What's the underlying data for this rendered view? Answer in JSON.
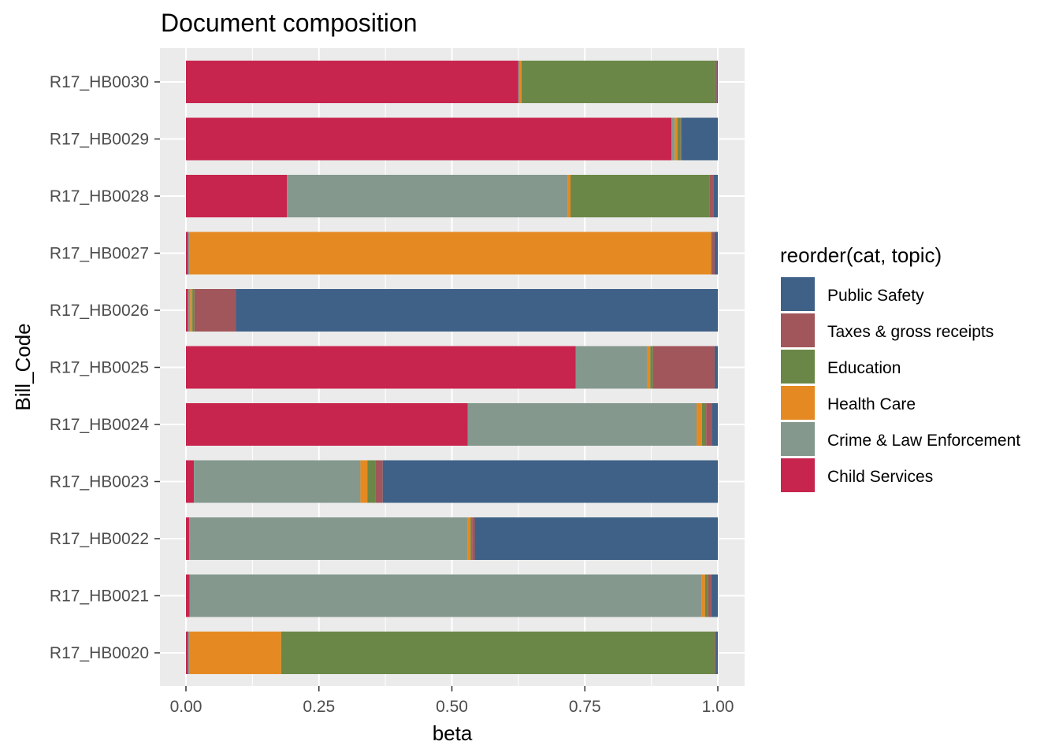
{
  "chart_data": {
    "type": "bar",
    "orientation": "horizontal",
    "stacked": true,
    "title": "Document composition",
    "xlabel": "beta",
    "ylabel": "Bill_Code",
    "xlim": [
      0,
      1
    ],
    "x_ticks": [
      "0.00",
      "0.25",
      "0.50",
      "0.75",
      "1.00"
    ],
    "grid": true,
    "legend_position": "right",
    "legend_title": "reorder(cat, topic)",
    "categories": [
      "R17_HB0030",
      "R17_HB0029",
      "R17_HB0028",
      "R17_HB0027",
      "R17_HB0026",
      "R17_HB0025",
      "R17_HB0024",
      "R17_HB0023",
      "R17_HB0022",
      "R17_HB0021",
      "R17_HB0020"
    ],
    "series": [
      {
        "name": "Child Services",
        "color": "#C7254E",
        "values": [
          0.625,
          0.913,
          0.19,
          0.004,
          0.004,
          0.733,
          0.53,
          0.015,
          0.006,
          0.007,
          0.004
        ]
      },
      {
        "name": "Crime & Law Enforcement",
        "color": "#84988E",
        "values": [
          0.003,
          0.006,
          0.528,
          0.002,
          0.004,
          0.135,
          0.43,
          0.313,
          0.524,
          0.963,
          0.002
        ]
      },
      {
        "name": "Health Care",
        "color": "#E58A22",
        "values": [
          0.003,
          0.005,
          0.005,
          0.981,
          0.004,
          0.005,
          0.01,
          0.013,
          0.005,
          0.006,
          0.173
        ]
      },
      {
        "name": "Education",
        "color": "#6B8747",
        "values": [
          0.364,
          0.006,
          0.262,
          0.002,
          0.004,
          0.005,
          0.008,
          0.015,
          0.003,
          0.006,
          0.815
        ]
      },
      {
        "name": "Taxes & gross receipts",
        "color": "#A1565B",
        "values": [
          0.003,
          0.002,
          0.007,
          0.005,
          0.078,
          0.116,
          0.011,
          0.014,
          0.005,
          0.006,
          0.003
        ]
      },
      {
        "name": "Public Safety",
        "color": "#3F6187",
        "values": [
          0.002,
          0.068,
          0.008,
          0.006,
          0.906,
          0.006,
          0.011,
          0.63,
          0.457,
          0.012,
          0.003
        ]
      }
    ],
    "legend_order": [
      "Public Safety",
      "Taxes & gross receipts",
      "Education",
      "Health Care",
      "Crime & Law Enforcement",
      "Child Services"
    ]
  }
}
